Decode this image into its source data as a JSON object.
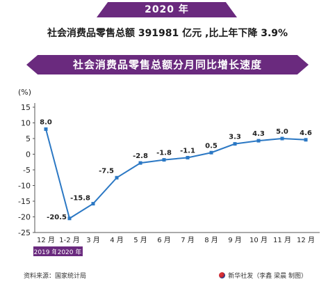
{
  "header": {
    "year_banner": "2020 年",
    "headline": "社会消费品零售总额 391981 亿元 ,比上年下降 3.9%",
    "chart_title": "社会消费品零售总额分月同比增长速度"
  },
  "footer": {
    "source": "资料来源：国家统计局",
    "credit": "新华社发（李鑫 梁晨 制图）"
  },
  "colors": {
    "accent": "#6a2a7e",
    "line": "#2b78c4"
  },
  "chart_data": {
    "type": "line",
    "title": "社会消费品零售总额分月同比增长速度",
    "ylabel": "(%)",
    "ylim": [
      -25,
      15
    ],
    "yticks": [
      15,
      10,
      5,
      0,
      -5,
      -10,
      -15,
      -20,
      -25
    ],
    "grid": false,
    "categories": [
      "12 月",
      "1-2 月",
      "3 月",
      "4 月",
      "5 月",
      "6 月",
      "7 月",
      "8 月",
      "9 月",
      "10 月",
      "11 月",
      "12 月"
    ],
    "values": [
      8.0,
      -20.5,
      -15.8,
      -7.5,
      -2.8,
      -1.8,
      -1.1,
      0.5,
      3.3,
      4.3,
      5.0,
      4.6
    ],
    "labels": [
      "8.0",
      "-20.5",
      "-15.8",
      "-7.5",
      "-2.8",
      "-1.8",
      "-1.1",
      "0.5",
      "3.3",
      "4.3",
      "5.0",
      "4.6"
    ],
    "year_tags": [
      "2019 年",
      "2020 年"
    ]
  }
}
